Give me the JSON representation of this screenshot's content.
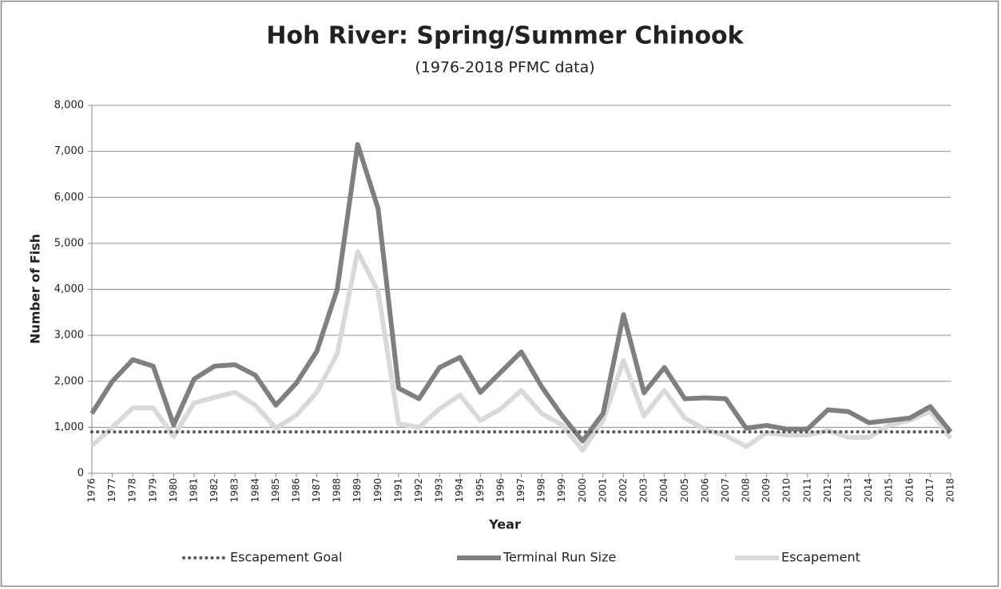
{
  "chart_data": {
    "type": "line",
    "title": "Hoh River: Spring/Summer Chinook",
    "subtitle": "(1976-2018 PFMC data)",
    "x_label": "Year",
    "y_label": "Number of Fish",
    "x": [
      1976,
      1977,
      1978,
      1979,
      1980,
      1981,
      1982,
      1983,
      1984,
      1985,
      1986,
      1987,
      1988,
      1989,
      1990,
      1991,
      1992,
      1993,
      1994,
      1995,
      1996,
      1997,
      1998,
      1999,
      2000,
      2001,
      2002,
      2003,
      2004,
      2005,
      2006,
      2007,
      2008,
      2009,
      2010,
      2011,
      2012,
      2013,
      2014,
      2015,
      2016,
      2017,
      2018
    ],
    "xlim": [
      1976,
      2018
    ],
    "xticks": [
      1976,
      1977,
      1978,
      1979,
      1980,
      1981,
      1982,
      1983,
      1984,
      1985,
      1986,
      1987,
      1988,
      1989,
      1990,
      1991,
      1992,
      1993,
      1994,
      1995,
      1996,
      1997,
      1998,
      1999,
      2000,
      2001,
      2002,
      2003,
      2004,
      2005,
      2006,
      2007,
      2008,
      2009,
      2010,
      2011,
      2012,
      2013,
      2014,
      2015,
      2016,
      2017,
      2018
    ],
    "ylim": [
      0,
      8000
    ],
    "yticks": [
      0,
      {
        "value": 1000,
        "label": "1,000"
      },
      {
        "value": 2000,
        "label": "2,000"
      },
      {
        "value": 3000,
        "label": "3,000"
      },
      {
        "value": 4000,
        "label": "4,000"
      },
      {
        "value": 5000,
        "label": "5,000"
      },
      {
        "value": 6000,
        "label": "6,000"
      },
      {
        "value": 7000,
        "label": "7,000"
      },
      {
        "value": 8000,
        "label": "8,000"
      }
    ],
    "grid": true,
    "legend": "bottom",
    "series": [
      {
        "name": "Escapement Goal",
        "color": "#595959",
        "style": "dotted",
        "values": [
          900,
          900,
          900,
          900,
          900,
          900,
          900,
          900,
          900,
          900,
          900,
          900,
          900,
          900,
          900,
          900,
          900,
          900,
          900,
          900,
          900,
          900,
          900,
          900,
          900,
          900,
          900,
          900,
          900,
          900,
          900,
          900,
          900,
          900,
          900,
          900,
          900,
          900,
          900,
          900,
          900,
          900,
          900
        ]
      },
      {
        "name": "Terminal Run Size",
        "color": "#7f7f7f",
        "style": "solid",
        "values": [
          1300,
          2000,
          2470,
          2330,
          1050,
          2050,
          2330,
          2360,
          2130,
          1480,
          1960,
          2650,
          4000,
          7150,
          5750,
          1850,
          1620,
          2300,
          2520,
          1760,
          2200,
          2640,
          1880,
          1250,
          700,
          1300,
          3450,
          1750,
          2300,
          1620,
          1640,
          1620,
          980,
          1040,
          960,
          960,
          1380,
          1340,
          1100,
          1150,
          1200,
          1450,
          900
        ]
      },
      {
        "name": "Escapement",
        "color": "#d9d9d9",
        "style": "solid",
        "values": [
          600,
          1000,
          1420,
          1420,
          800,
          1530,
          1650,
          1760,
          1480,
          980,
          1260,
          1760,
          2600,
          4820,
          3950,
          1080,
          1000,
          1400,
          1700,
          1150,
          1400,
          1800,
          1300,
          1050,
          500,
          1150,
          2450,
          1250,
          1800,
          1200,
          950,
          820,
          580,
          880,
          830,
          830,
          930,
          780,
          780,
          1050,
          1150,
          1350,
          760
        ]
      }
    ]
  }
}
